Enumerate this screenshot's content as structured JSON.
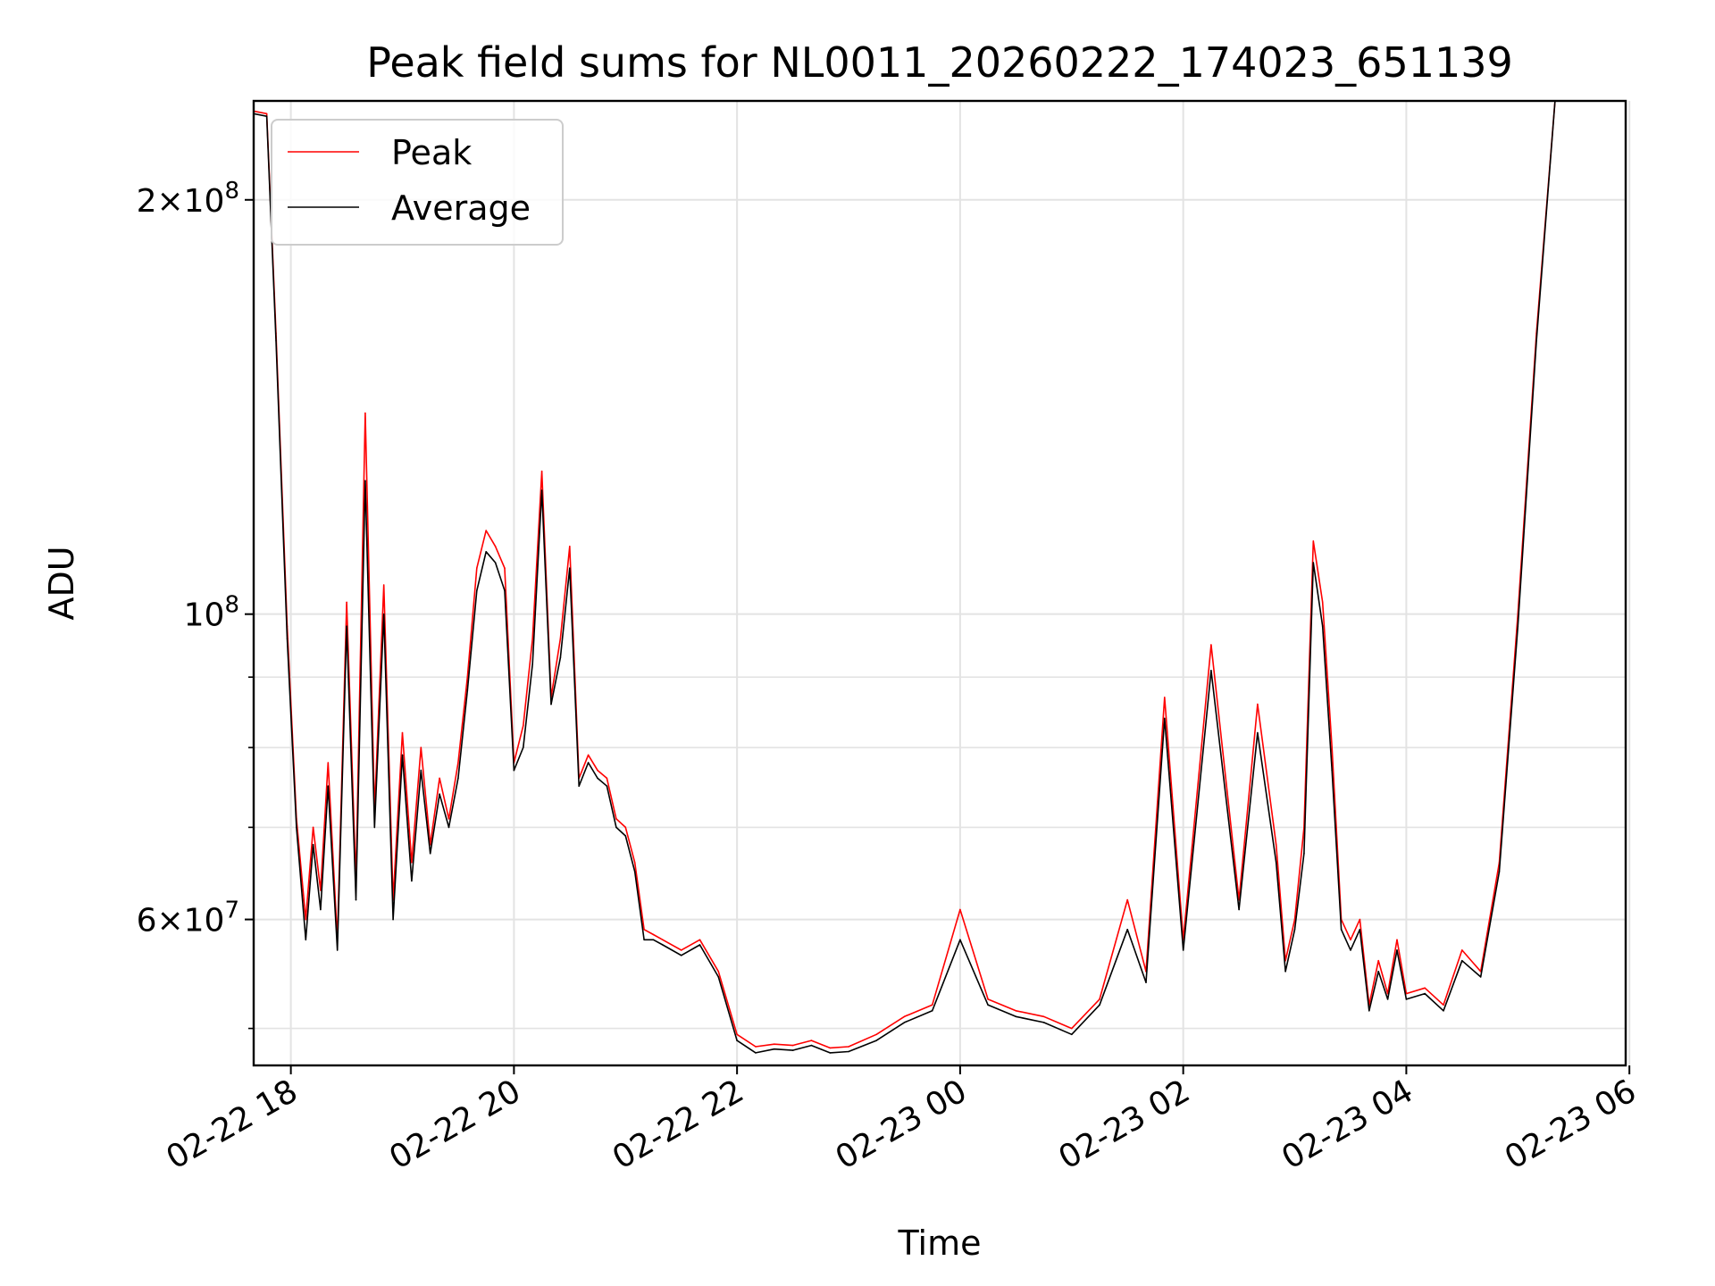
{
  "chart_data": {
    "type": "line",
    "title": "Peak field sums for NL0011_20260222_174023_651139",
    "xlabel": "Time",
    "ylabel": "ADU",
    "y_scale": "log",
    "grid": true,
    "legend_position": "upper-left",
    "xlim": [
      "2026-02-22 17:40",
      "2026-02-23 05:58"
    ],
    "ylim": [
      47000000,
      236000000
    ],
    "x_ticks": [
      "02-22 18",
      "02-22 20",
      "02-22 22",
      "02-23 00",
      "02-23 02",
      "02-23 04",
      "02-23 06"
    ],
    "y_ticks_major": [
      {
        "value": 60000000,
        "mantissa": "6",
        "exponent": "7"
      },
      {
        "value": 100000000,
        "mantissa": "",
        "exponent": "8"
      },
      {
        "value": 200000000,
        "mantissa": "2",
        "exponent": "8"
      }
    ],
    "y_ticks_minor": [
      50000000,
      70000000,
      80000000,
      90000000
    ],
    "x": [
      "2026-02-22 17:40",
      "2026-02-22 17:47",
      "2026-02-22 17:52",
      "2026-02-22 17:58",
      "2026-02-22 18:03",
      "2026-02-22 18:08",
      "2026-02-22 18:12",
      "2026-02-22 18:16",
      "2026-02-22 18:20",
      "2026-02-22 18:25",
      "2026-02-22 18:30",
      "2026-02-22 18:35",
      "2026-02-22 18:40",
      "2026-02-22 18:45",
      "2026-02-22 18:50",
      "2026-02-22 18:55",
      "2026-02-22 19:00",
      "2026-02-22 19:05",
      "2026-02-22 19:10",
      "2026-02-22 19:15",
      "2026-02-22 19:20",
      "2026-02-22 19:25",
      "2026-02-22 19:30",
      "2026-02-22 19:35",
      "2026-02-22 19:40",
      "2026-02-22 19:45",
      "2026-02-22 19:50",
      "2026-02-22 19:55",
      "2026-02-22 20:00",
      "2026-02-22 20:05",
      "2026-02-22 20:10",
      "2026-02-22 20:15",
      "2026-02-22 20:20",
      "2026-02-22 20:25",
      "2026-02-22 20:30",
      "2026-02-22 20:35",
      "2026-02-22 20:40",
      "2026-02-22 20:45",
      "2026-02-22 20:50",
      "2026-02-22 20:55",
      "2026-02-22 21:00",
      "2026-02-22 21:05",
      "2026-02-22 21:10",
      "2026-02-22 21:15",
      "2026-02-22 21:20",
      "2026-02-22 21:30",
      "2026-02-22 21:40",
      "2026-02-22 21:50",
      "2026-02-22 22:00",
      "2026-02-22 22:10",
      "2026-02-22 22:20",
      "2026-02-22 22:30",
      "2026-02-22 22:40",
      "2026-02-22 22:50",
      "2026-02-22 23:00",
      "2026-02-22 23:15",
      "2026-02-22 23:30",
      "2026-02-22 23:45",
      "2026-02-23 00:00",
      "2026-02-23 00:15",
      "2026-02-23 00:30",
      "2026-02-23 00:45",
      "2026-02-23 01:00",
      "2026-02-23 01:15",
      "2026-02-23 01:30",
      "2026-02-23 01:40",
      "2026-02-23 01:50",
      "2026-02-23 02:00",
      "2026-02-23 02:15",
      "2026-02-23 02:30",
      "2026-02-23 02:40",
      "2026-02-23 02:50",
      "2026-02-23 02:55",
      "2026-02-23 03:00",
      "2026-02-23 03:05",
      "2026-02-23 03:10",
      "2026-02-23 03:15",
      "2026-02-23 03:20",
      "2026-02-23 03:25",
      "2026-02-23 03:30",
      "2026-02-23 03:35",
      "2026-02-23 03:40",
      "2026-02-23 03:45",
      "2026-02-23 03:50",
      "2026-02-23 03:55",
      "2026-02-23 04:00",
      "2026-02-23 04:10",
      "2026-02-23 04:20",
      "2026-02-23 04:30",
      "2026-02-23 04:40",
      "2026-02-23 04:50",
      "2026-02-23 05:00",
      "2026-02-23 05:10",
      "2026-02-23 05:20",
      "2026-02-23 05:30",
      "2026-02-23 05:40",
      "2026-02-23 05:50",
      "2026-02-23 05:58"
    ],
    "series": [
      {
        "name": "Peak",
        "color": "#ff0000",
        "values": [
          232000000,
          231000000,
          160000000,
          98000000,
          71000000,
          60000000,
          70000000,
          63000000,
          78000000,
          58000000,
          102000000,
          64000000,
          140000000,
          72000000,
          105000000,
          62000000,
          82000000,
          66000000,
          80000000,
          68000000,
          76000000,
          71000000,
          78000000,
          90000000,
          108000000,
          115000000,
          112000000,
          108000000,
          78000000,
          83000000,
          96000000,
          127000000,
          87000000,
          96000000,
          112000000,
          76000000,
          79000000,
          77000000,
          76000000,
          71000000,
          70000000,
          66000000,
          59000000,
          58500000,
          58000000,
          57000000,
          58000000,
          55000000,
          49500000,
          48500000,
          48700000,
          48600000,
          49000000,
          48400000,
          48500000,
          49500000,
          51000000,
          52000000,
          61000000,
          52500000,
          51500000,
          51000000,
          50000000,
          52500000,
          62000000,
          55000000,
          87000000,
          58000000,
          95000000,
          62000000,
          86000000,
          68000000,
          56000000,
          60000000,
          70000000,
          113000000,
          102000000,
          80000000,
          60000000,
          58000000,
          60000000,
          52000000,
          56000000,
          53000000,
          58000000,
          53000000,
          53500000,
          52000000,
          57000000,
          55000000,
          66000000,
          100000000,
          160000000,
          236000000,
          236000000,
          236000000,
          236000000,
          236000000
        ]
      },
      {
        "name": "Average",
        "color": "#000000",
        "values": [
          231000000,
          230000000,
          158000000,
          96000000,
          70000000,
          58000000,
          68000000,
          61000000,
          75000000,
          57000000,
          98000000,
          62000000,
          125000000,
          70000000,
          100000000,
          60000000,
          79000000,
          64000000,
          77000000,
          67000000,
          74000000,
          70000000,
          76000000,
          88000000,
          104000000,
          111000000,
          109000000,
          104000000,
          77000000,
          80000000,
          92000000,
          123000000,
          86000000,
          93000000,
          108000000,
          75000000,
          78000000,
          76000000,
          75000000,
          70000000,
          69000000,
          65000000,
          58000000,
          58000000,
          57500000,
          56500000,
          57500000,
          54500000,
          49000000,
          48000000,
          48300000,
          48200000,
          48600000,
          48000000,
          48100000,
          49000000,
          50500000,
          51500000,
          58000000,
          52000000,
          51000000,
          50500000,
          49500000,
          52000000,
          59000000,
          54000000,
          84000000,
          57000000,
          91000000,
          61000000,
          82000000,
          66000000,
          55000000,
          59000000,
          67000000,
          109000000,
          98000000,
          77000000,
          59000000,
          57000000,
          59000000,
          51500000,
          55000000,
          52500000,
          57000000,
          52500000,
          53000000,
          51500000,
          56000000,
          54500000,
          65000000,
          98000000,
          158000000,
          236000000,
          236000000,
          236000000,
          236000000,
          236000000
        ]
      }
    ]
  }
}
